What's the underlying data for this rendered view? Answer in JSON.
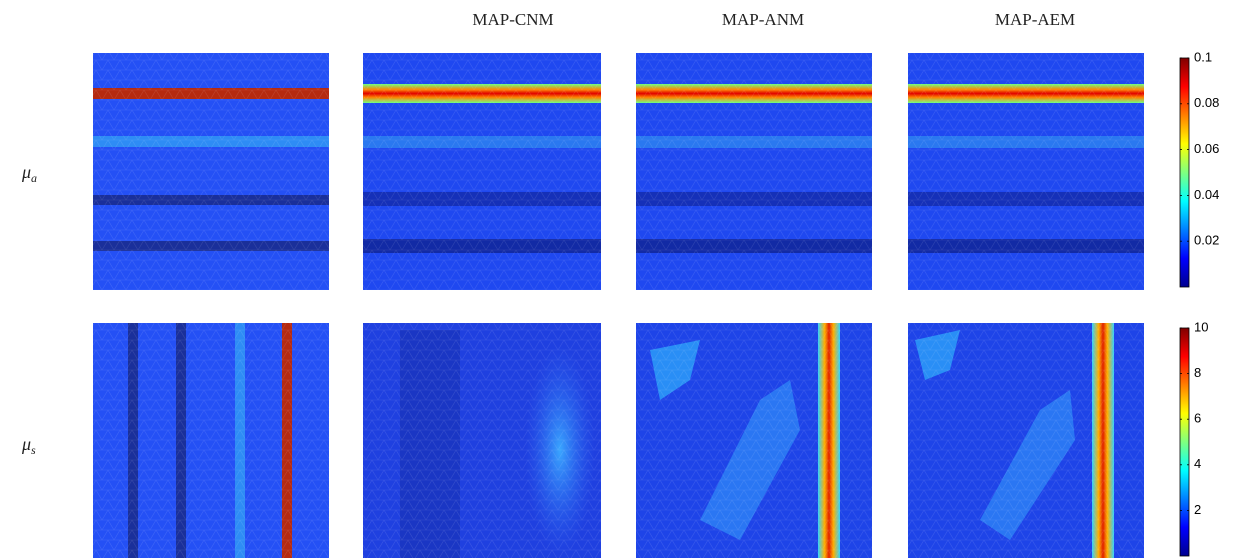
{
  "columns": [
    "MAP-CNM",
    "MAP-ANM",
    "MAP-AEM"
  ],
  "rows": [
    {
      "symbol": "μ",
      "subscript": "a"
    },
    {
      "symbol": "μ",
      "subscript": "s"
    }
  ],
  "colorbars": [
    {
      "lim": [
        0,
        0.1
      ],
      "ticks": [
        0.02,
        0.04,
        0.06,
        0.08,
        0.1
      ]
    },
    {
      "lim": [
        0,
        10
      ],
      "ticks": [
        2,
        4,
        6,
        8,
        10
      ]
    }
  ]
}
